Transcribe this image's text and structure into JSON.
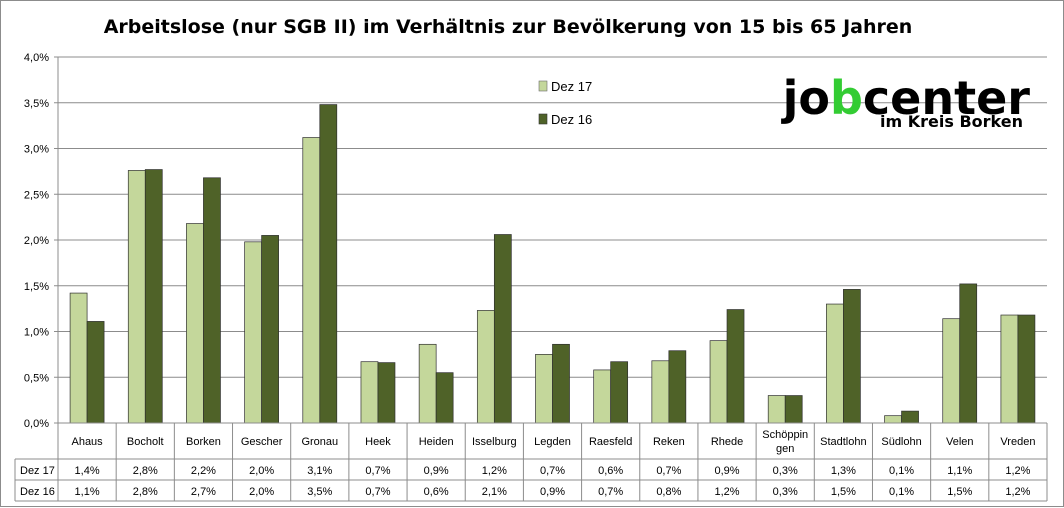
{
  "chart_data": {
    "type": "bar",
    "title": "Arbeitslose (nur SGB II) im Verhältnis zur Bevölkerung von 15 bis 65 Jahren",
    "xlabel": "",
    "ylabel": "",
    "ylim": [
      0,
      4.0
    ],
    "y_ticks": [
      "0,0%",
      "0,5%",
      "1,0%",
      "1,5%",
      "2,0%",
      "2,5%",
      "3,0%",
      "3,5%",
      "4,0%"
    ],
    "grid": true,
    "legend_position": "top-center",
    "categories": [
      "Ahaus",
      "Bocholt",
      "Borken",
      "Gescher",
      "Gronau",
      "Heek",
      "Heiden",
      "Isselburg",
      "Legden",
      "Raesfeld",
      "Reken",
      "Rhede",
      "Schöppin gen",
      "Stadtlohn",
      "Südlohn",
      "Velen",
      "Vreden"
    ],
    "category_lines": [
      [
        "Ahaus"
      ],
      [
        "Bocholt"
      ],
      [
        "Borken"
      ],
      [
        "Gescher"
      ],
      [
        "Gronau"
      ],
      [
        "Heek"
      ],
      [
        "Heiden"
      ],
      [
        "Isselburg"
      ],
      [
        "Legden"
      ],
      [
        "Raesfeld"
      ],
      [
        "Reken"
      ],
      [
        "Rhede"
      ],
      [
        "Schöppin",
        "gen"
      ],
      [
        "Stadtlohn"
      ],
      [
        "Südlohn"
      ],
      [
        "Velen"
      ],
      [
        "Vreden"
      ]
    ],
    "series": [
      {
        "name": "Dez 17",
        "color": "#c4d79b",
        "values": [
          1.42,
          2.76,
          2.18,
          1.98,
          3.12,
          0.67,
          0.86,
          1.23,
          0.75,
          0.58,
          0.68,
          0.9,
          0.3,
          1.3,
          0.08,
          1.14,
          1.18
        ],
        "labels": [
          "1,4%",
          "2,8%",
          "2,2%",
          "2,0%",
          "3,1%",
          "0,7%",
          "0,9%",
          "1,2%",
          "0,7%",
          "0,6%",
          "0,7%",
          "0,9%",
          "0,3%",
          "1,3%",
          "0,1%",
          "1,1%",
          "1,2%"
        ]
      },
      {
        "name": "Dez 16",
        "color": "#4f6228",
        "values": [
          1.11,
          2.77,
          2.68,
          2.05,
          3.48,
          0.66,
          0.55,
          2.06,
          0.86,
          0.67,
          0.79,
          1.24,
          0.3,
          1.46,
          0.13,
          1.52,
          1.18
        ],
        "labels": [
          "1,1%",
          "2,8%",
          "2,7%",
          "2,0%",
          "3,5%",
          "0,7%",
          "0,6%",
          "2,1%",
          "0,9%",
          "0,7%",
          "0,8%",
          "1,2%",
          "0,3%",
          "1,5%",
          "0,1%",
          "1,5%",
          "1,2%"
        ]
      }
    ]
  },
  "logo": {
    "text_start": "jo",
    "text_b": "b",
    "text_end": "center",
    "subtitle": "im Kreis Borken",
    "accent_color": "#33cc33"
  }
}
